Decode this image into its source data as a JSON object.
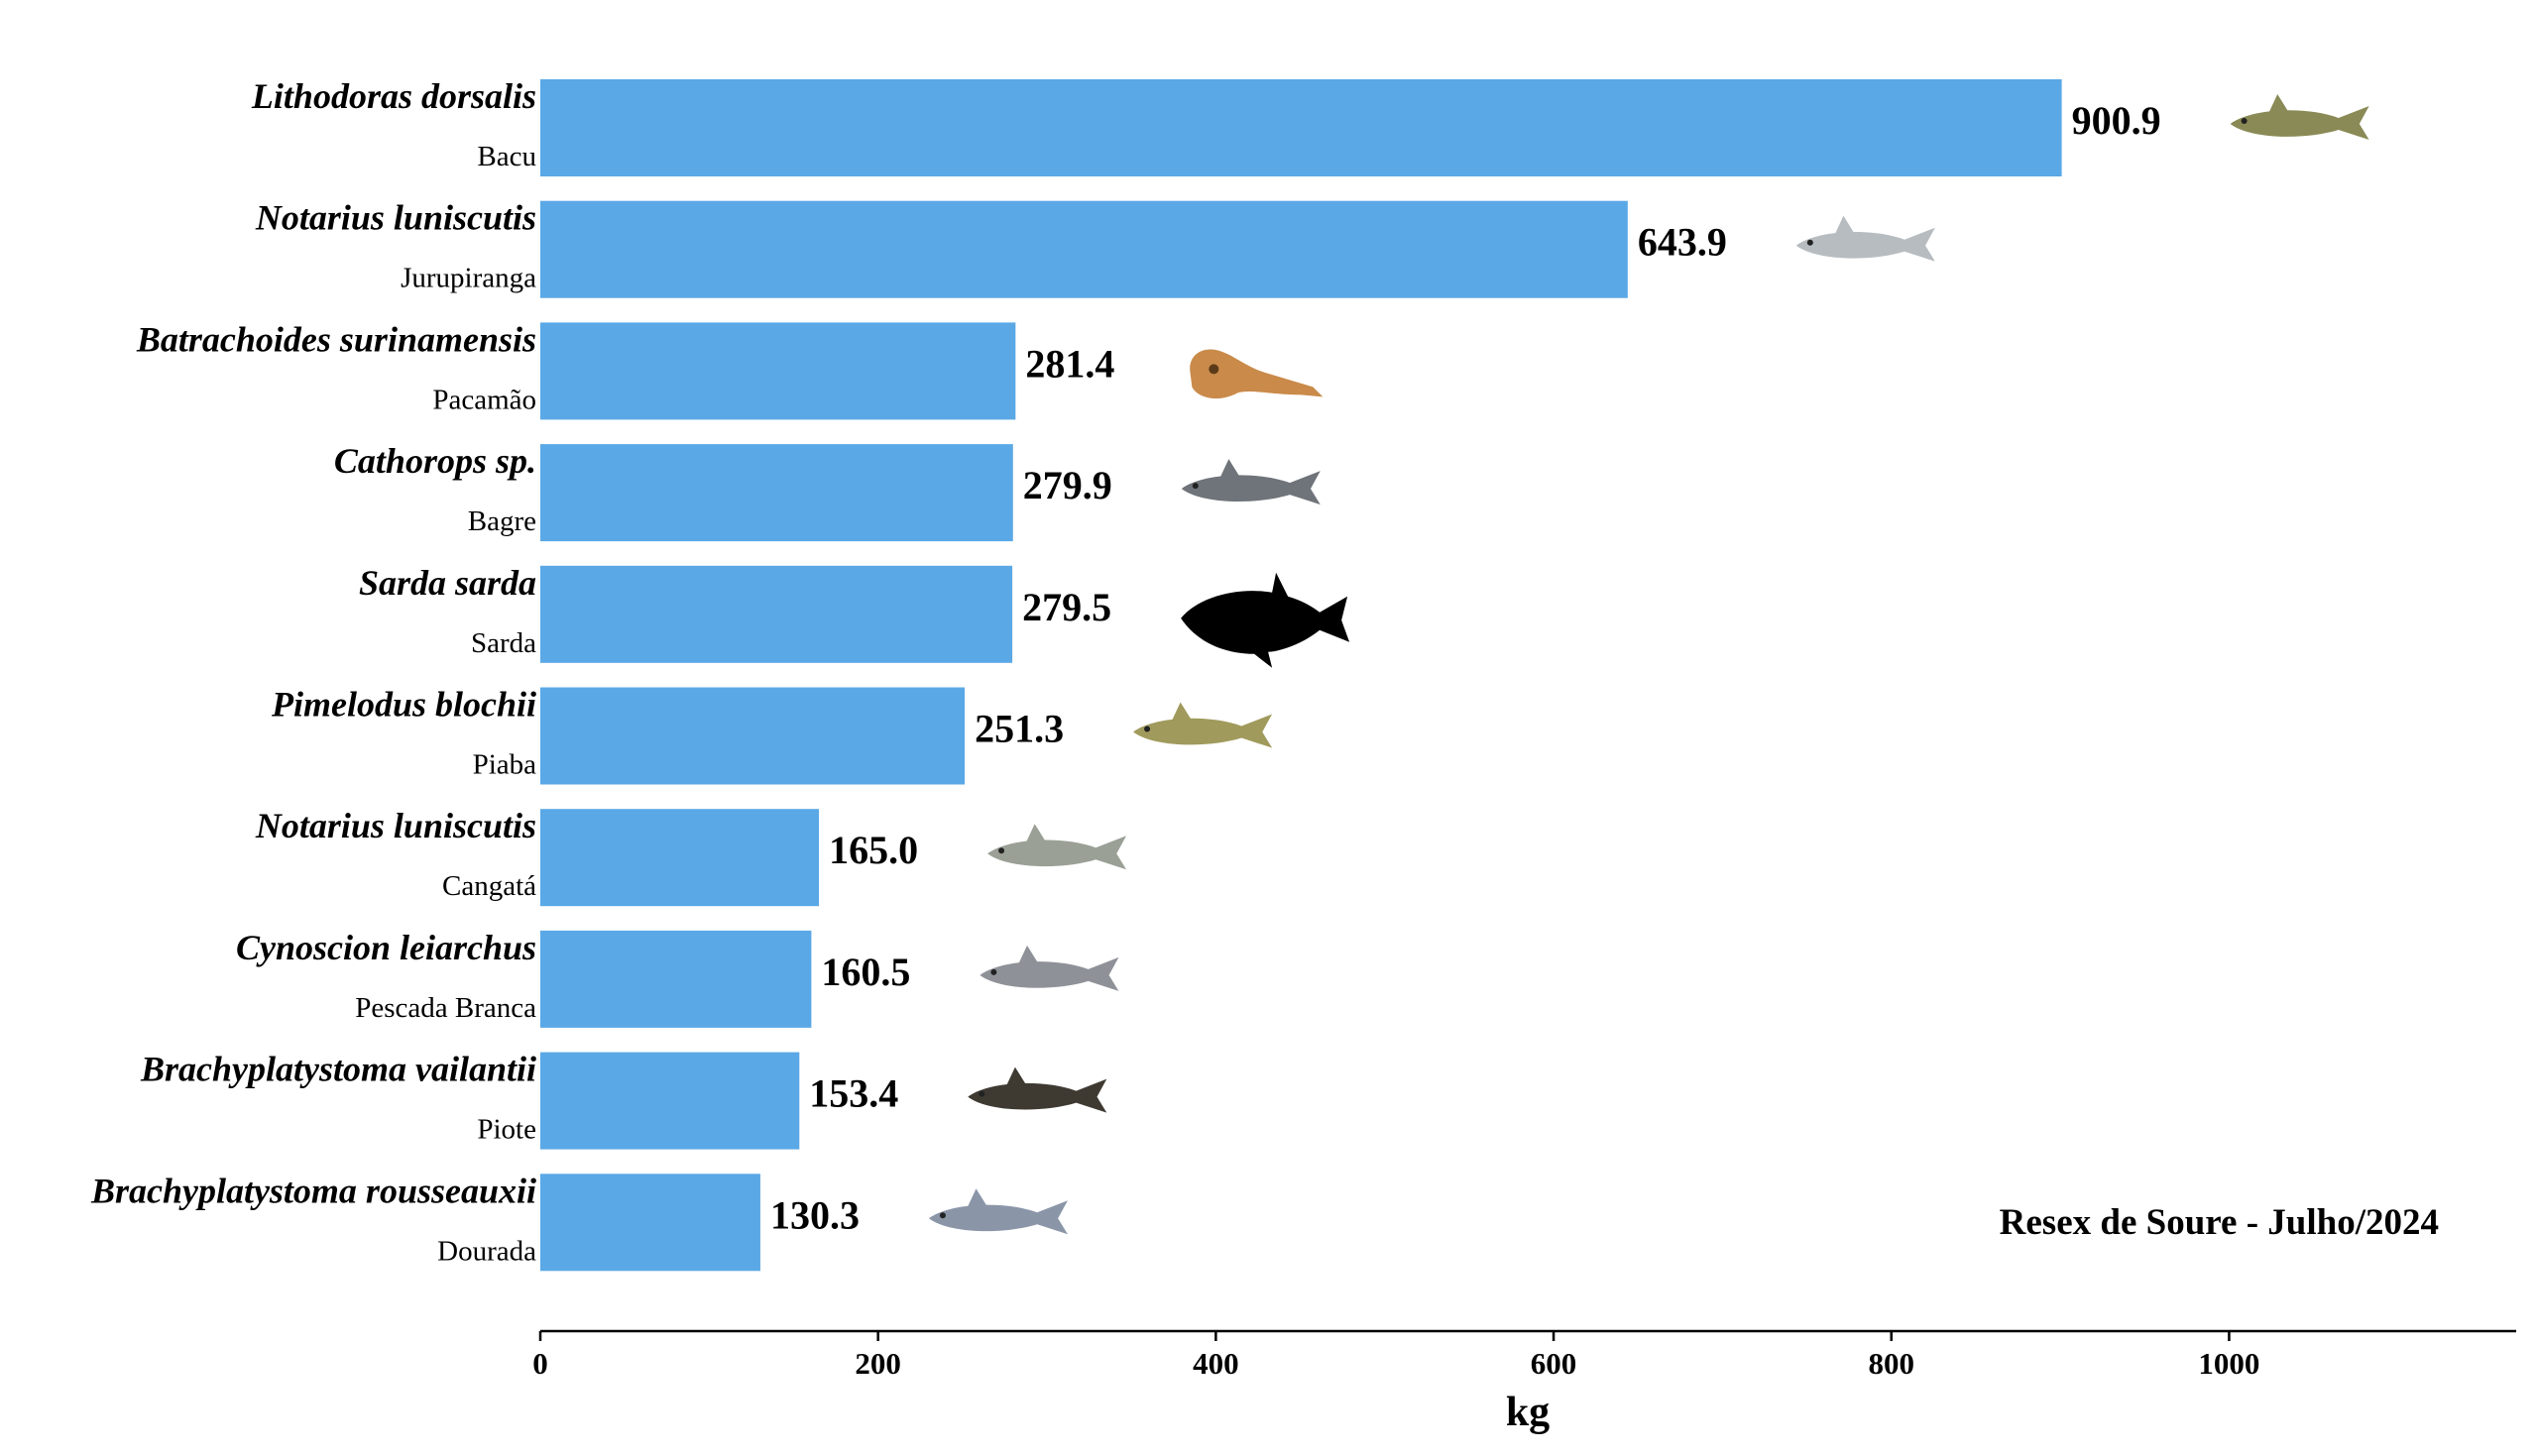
{
  "chart_data": {
    "type": "bar",
    "orientation": "horizontal",
    "xlabel": "kg",
    "xlim": [
      0,
      1170
    ],
    "xticks": [
      0,
      200,
      400,
      600,
      800,
      1000
    ],
    "annotation": "Resex de Soure - Julho/2024",
    "bar_color": "#5aa8e6",
    "species": [
      {
        "scientific": "Lithodoras dorsalis",
        "common": "Bacu",
        "value": 900.9,
        "value_label": "900.9",
        "icon": "bacu-fish-icon",
        "icon_color": "#8a8a56"
      },
      {
        "scientific": "Notarius luniscutis",
        "common": "Jurupiranga",
        "value": 643.9,
        "value_label": "643.9",
        "icon": "jurupiranga-fish-icon",
        "icon_color": "#b6bcc0"
      },
      {
        "scientific": "Batrachoides surinamensis",
        "common": "Pacamão",
        "value": 281.4,
        "value_label": "281.4",
        "icon": "pacamao-fish-icon",
        "icon_color": "#c98a4a"
      },
      {
        "scientific": "Cathorops sp.",
        "common": "Bagre",
        "value": 279.9,
        "value_label": "279.9",
        "icon": "bagre-fish-icon",
        "icon_color": "#6f747a"
      },
      {
        "scientific": "Sarda sarda",
        "common": "Sarda",
        "value": 279.5,
        "value_label": "279.5",
        "icon": "sarda-fish-silhouette-icon",
        "icon_color": "#000000"
      },
      {
        "scientific": "Pimelodus blochii",
        "common": "Piaba",
        "value": 251.3,
        "value_label": "251.3",
        "icon": "piaba-fish-icon",
        "icon_color": "#a09a5c"
      },
      {
        "scientific": "Notarius luniscutis",
        "common": "Cangatá",
        "value": 165.0,
        "value_label": "165.0",
        "icon": "cangata-fish-icon",
        "icon_color": "#9aa096"
      },
      {
        "scientific": "Cynoscion leiarchus",
        "common": "Pescada Branca",
        "value": 160.5,
        "value_label": "160.5",
        "icon": "pescada-fish-icon",
        "icon_color": "#8e9298"
      },
      {
        "scientific": "Brachyplatystoma vailantii",
        "common": "Piote",
        "value": 153.4,
        "value_label": "153.4",
        "icon": "piote-fish-icon",
        "icon_color": "#3e3a32"
      },
      {
        "scientific": "Brachyplatystoma rousseauxii",
        "common": "Dourada",
        "value": 130.3,
        "value_label": "130.3",
        "icon": "dourada-fish-icon",
        "icon_color": "#8a96a8"
      }
    ]
  }
}
